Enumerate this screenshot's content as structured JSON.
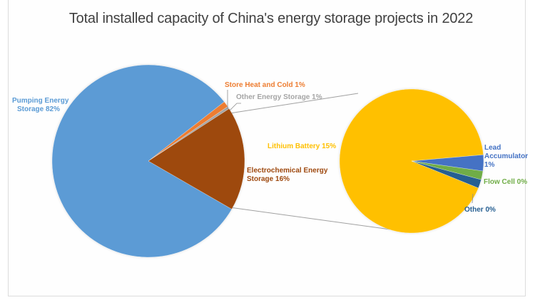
{
  "chart_data": {
    "type": "pie",
    "subtype": "pie-of-pie",
    "title": "Total installed capacity of China's energy storage projects in 2022",
    "main_pie": {
      "categories": [
        "Pumping Energy Storage",
        "Electrochemical Energy Storage",
        "Other Energy Storage",
        "Store Heat and Cold"
      ],
      "values": [
        82,
        16,
        1,
        1
      ],
      "unit": "%",
      "colors": [
        "#5b9bd5",
        "#9e480e",
        "#a5a5a5",
        "#ed7d31"
      ]
    },
    "secondary_pie": {
      "expands": "Electrochemical Energy Storage",
      "categories": [
        "Lithium Battery",
        "Lead Accumulator",
        "Flow Cell",
        "Other"
      ],
      "values": [
        15,
        1,
        0,
        0
      ],
      "unit": "%",
      "colors": [
        "#ffc000",
        "#4472c4",
        "#70ad47",
        "#255e91"
      ]
    },
    "legend": "none (data labels on slices)"
  },
  "title": "Total installed capacity of China's energy storage projects in 2022",
  "labels": {
    "pumping_1": "Pumping Energy",
    "pumping_2": "Storage 82%",
    "store_heat": "Store Heat and Cold 1%",
    "other_energy": "Other Energy Storage 1%",
    "electro_1": "Electrochemical Energy",
    "electro_2": "Storage 16%",
    "lithium": "Lithium Battery  15%",
    "lead_1": "Lead",
    "lead_2": "Accumulator",
    "lead_3": "1%",
    "flow": "Flow Cell 0%",
    "other": "Other 0%"
  },
  "colors": {
    "pumping": "#5b9bd5",
    "electro": "#9e480e",
    "other_energy": "#a5a5a5",
    "store_heat": "#ed7d31",
    "lithium": "#ffc000",
    "lead": "#4472c4",
    "flow": "#70ad47",
    "other_small": "#255e91",
    "connector": "#a0a0a0"
  }
}
